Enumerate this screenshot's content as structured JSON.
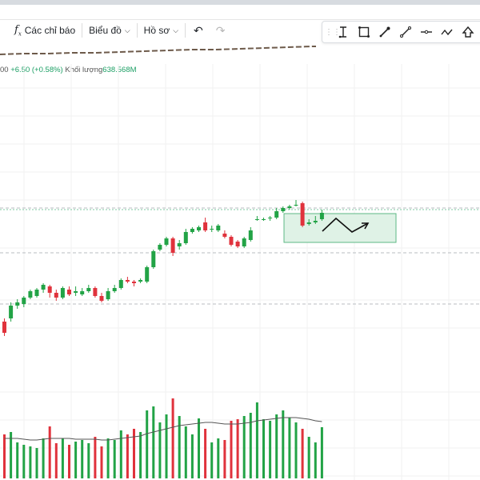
{
  "toolbar": {
    "indicators_label": "Các chỉ báo",
    "chart_label": "Biểu đồ",
    "profile_label": "Hồ sơ"
  },
  "legend": {
    "prefix": "00",
    "change": "+6.50 (+0.58%)",
    "volume_label": "Khối lượng",
    "volume_value": "638.568M"
  },
  "colors": {
    "up": "#22a346",
    "down": "#e0323c",
    "box_fill": "#dff2e6",
    "box_border": "#5db884"
  },
  "icons": [
    "function-icon",
    "chevron-down-icon",
    "undo-icon",
    "redo-icon",
    "drag-grip-icon",
    "text-cursor-icon",
    "rectangle-icon",
    "brush-icon",
    "trend-line-icon",
    "horizontal-line-icon",
    "path-icon",
    "arrow-up-icon"
  ],
  "chart_data": {
    "type": "candlestick",
    "candles": [
      [
        1069,
        1062,
        1071,
        1060
      ],
      [
        1071,
        1079,
        1081,
        1069
      ],
      [
        1079,
        1081,
        1083,
        1077
      ],
      [
        1080,
        1084,
        1085,
        1078
      ],
      [
        1084,
        1088,
        1089,
        1083
      ],
      [
        1085,
        1089,
        1090,
        1084
      ],
      [
        1089,
        1092,
        1093,
        1087
      ],
      [
        1091,
        1087,
        1092,
        1084
      ],
      [
        1087,
        1084,
        1089,
        1082
      ],
      [
        1084,
        1090,
        1091,
        1083
      ],
      [
        1089,
        1086,
        1091,
        1085
      ],
      [
        1087,
        1088,
        1091,
        1085
      ],
      [
        1086,
        1088,
        1090,
        1085
      ],
      [
        1088,
        1090,
        1092,
        1087
      ],
      [
        1090,
        1085,
        1091,
        1084
      ],
      [
        1085,
        1082,
        1087,
        1081
      ],
      [
        1083,
        1088,
        1090,
        1082
      ],
      [
        1088,
        1090,
        1092,
        1087
      ],
      [
        1090,
        1095,
        1096,
        1089
      ],
      [
        1095,
        1094,
        1097,
        1093
      ],
      [
        1094,
        1093,
        1095,
        1091
      ],
      [
        1094,
        1095,
        1096,
        1093
      ],
      [
        1094,
        1103,
        1104,
        1093
      ],
      [
        1103,
        1113,
        1114,
        1102
      ],
      [
        1114,
        1117,
        1118,
        1113
      ],
      [
        1117,
        1121,
        1122,
        1116
      ],
      [
        1121,
        1112,
        1122,
        1110
      ],
      [
        1116,
        1118,
        1120,
        1114
      ],
      [
        1118,
        1125,
        1127,
        1117
      ],
      [
        1125,
        1127,
        1128,
        1124
      ],
      [
        1126,
        1128,
        1129,
        1125
      ],
      [
        1131,
        1126,
        1134,
        1125
      ],
      [
        1127,
        1127,
        1129,
        1125
      ],
      [
        1126,
        1129,
        1130,
        1125
      ],
      [
        1124,
        1122,
        1126,
        1121
      ],
      [
        1122,
        1117,
        1123,
        1116
      ],
      [
        1119,
        1116,
        1120,
        1115
      ],
      [
        1116,
        1121,
        1122,
        1115
      ],
      [
        1120,
        1126,
        1128,
        1119
      ],
      [
        1133,
        1133,
        1135,
        1132
      ],
      [
        1133,
        1133,
        1134,
        1132
      ],
      [
        1134,
        1134,
        1135,
        1132
      ],
      [
        1134,
        1138,
        1140,
        1133
      ],
      [
        1138,
        1140,
        1141,
        1137
      ],
      [
        1140,
        1141,
        1142,
        1139
      ],
      [
        1142,
        1142,
        1145,
        1141
      ],
      [
        1143,
        1129,
        1144,
        1128
      ],
      [
        1130,
        1131,
        1133,
        1129
      ],
      [
        1131,
        1132,
        1135,
        1130
      ],
      [
        1133,
        1137,
        1139,
        1132
      ]
    ],
    "volume": [
      0.55,
      0.58,
      0.45,
      0.42,
      0.4,
      0.38,
      0.5,
      0.65,
      0.44,
      0.5,
      0.42,
      0.46,
      0.48,
      0.44,
      0.52,
      0.4,
      0.5,
      0.48,
      0.6,
      0.55,
      0.62,
      0.58,
      0.85,
      0.9,
      0.7,
      0.8,
      1.0,
      0.78,
      0.65,
      0.55,
      0.75,
      0.62,
      0.45,
      0.5,
      0.48,
      0.72,
      0.74,
      0.78,
      0.82,
      0.95,
      0.74,
      0.72,
      0.8,
      0.85,
      0.76,
      0.7,
      0.62,
      0.52,
      0.45,
      0.64
    ],
    "volume_ma": [
      0.5,
      0.5,
      0.5,
      0.49,
      0.48,
      0.48,
      0.49,
      0.5,
      0.5,
      0.5,
      0.5,
      0.49,
      0.49,
      0.49,
      0.49,
      0.48,
      0.48,
      0.49,
      0.5,
      0.51,
      0.52,
      0.53,
      0.56,
      0.58,
      0.6,
      0.62,
      0.64,
      0.66,
      0.67,
      0.68,
      0.69,
      0.7,
      0.7,
      0.69,
      0.68,
      0.68,
      0.68,
      0.69,
      0.7,
      0.72,
      0.73,
      0.74,
      0.75,
      0.76,
      0.76,
      0.76,
      0.75,
      0.74,
      0.72,
      0.71
    ],
    "reference_lines": [
      1140,
      1112,
      1080
    ],
    "dotted_line": 1139
  }
}
